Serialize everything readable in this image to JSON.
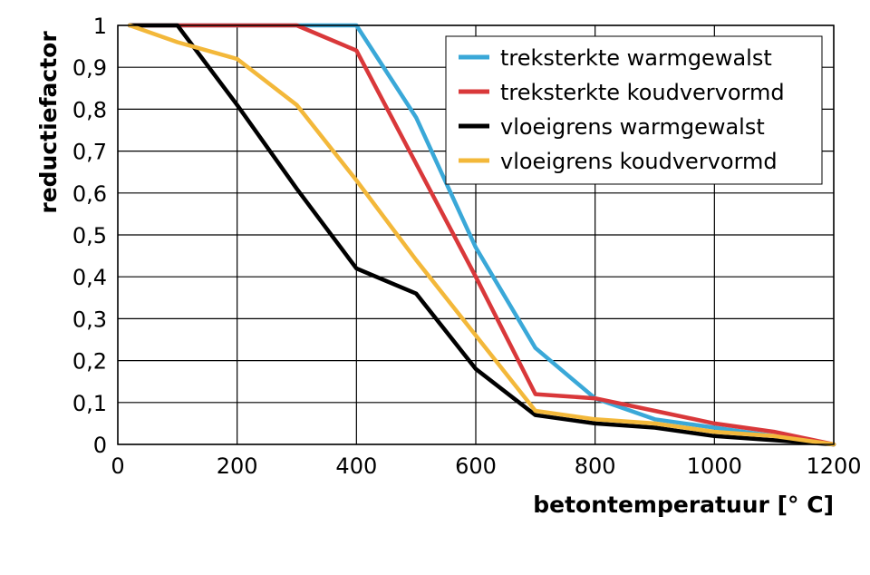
{
  "chart_data": {
    "type": "line",
    "xlabel": "betontemperatuur [° C]",
    "ylabel": "reductiefactor",
    "xlim": [
      0,
      1200
    ],
    "ylim": [
      0,
      1
    ],
    "xticks": [
      0,
      200,
      400,
      600,
      800,
      1000,
      1200
    ],
    "xtick_labels": [
      "0",
      "200",
      "400",
      "600",
      "800",
      "1000",
      "1200"
    ],
    "yticks": [
      0,
      0.1,
      0.2,
      0.3,
      0.4,
      0.5,
      0.6,
      0.7,
      0.8,
      0.9,
      1
    ],
    "ytick_labels": [
      "0",
      "0,1",
      "0,2",
      "0,3",
      "0,4",
      "0,5",
      "0,6",
      "0,7",
      "0,8",
      "0,9",
      "1"
    ],
    "grid": true,
    "legend_position": "top-right",
    "series": [
      {
        "name": "treksterkte warmgewalst",
        "color": "#3aa8d8",
        "x": [
          20,
          100,
          200,
          300,
          400,
          500,
          600,
          700,
          800,
          900,
          1000,
          1100,
          1200
        ],
        "y": [
          1,
          1,
          1,
          1,
          1,
          0.78,
          0.47,
          0.23,
          0.11,
          0.06,
          0.04,
          0.02,
          0
        ]
      },
      {
        "name": "treksterkte koudvervormd",
        "color": "#d9383a",
        "x": [
          20,
          100,
          200,
          300,
          400,
          500,
          600,
          700,
          800,
          900,
          1000,
          1100,
          1200
        ],
        "y": [
          1,
          1,
          1,
          1,
          0.94,
          0.67,
          0.4,
          0.12,
          0.11,
          0.08,
          0.05,
          0.03,
          0
        ]
      },
      {
        "name": "vloeigrens warmgewalst",
        "color": "#000000",
        "x": [
          20,
          100,
          200,
          300,
          400,
          500,
          600,
          700,
          800,
          900,
          1000,
          1100,
          1200
        ],
        "y": [
          1,
          1,
          0.81,
          0.61,
          0.42,
          0.36,
          0.18,
          0.07,
          0.05,
          0.04,
          0.02,
          0.01,
          0
        ]
      },
      {
        "name": "vloeigrens koudvervormd",
        "color": "#f3b83a",
        "x": [
          20,
          100,
          200,
          300,
          400,
          500,
          600,
          700,
          800,
          900,
          1000,
          1100,
          1200
        ],
        "y": [
          1,
          0.96,
          0.92,
          0.81,
          0.63,
          0.44,
          0.26,
          0.08,
          0.06,
          0.05,
          0.03,
          0.02,
          0
        ]
      }
    ]
  }
}
